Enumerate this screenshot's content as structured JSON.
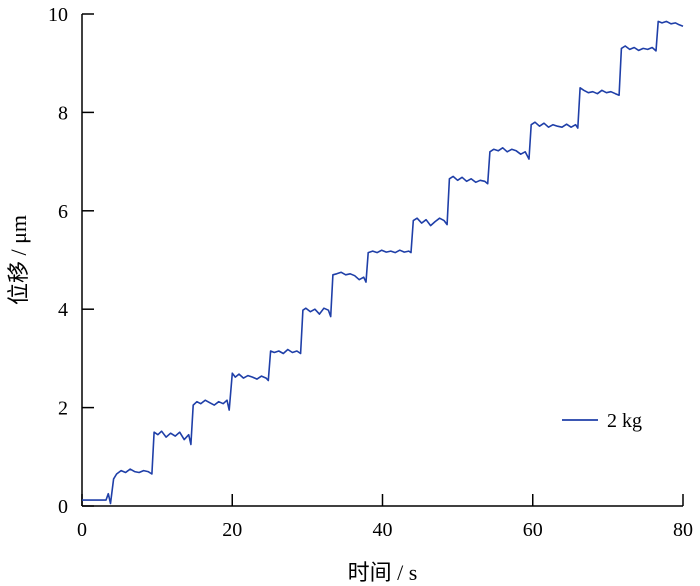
{
  "chart_data": {
    "type": "line",
    "title": "",
    "xlabel": "时间 / s",
    "ylabel": "位移 / μm",
    "xlim": [
      0,
      80
    ],
    "ylim": [
      0,
      10
    ],
    "xticks": [
      "0",
      "20",
      "40",
      "60",
      "80"
    ],
    "yticks": [
      "0",
      "2",
      "4",
      "6",
      "8",
      "10"
    ],
    "grid": false,
    "legend_position": "bottom-right",
    "series": [
      {
        "name": "2 kg",
        "color": "#1f3fa8",
        "x": [
          0,
          3.2,
          3.5,
          3.8,
          4.2,
          4.6,
          5.2,
          5.8,
          6.4,
          7.0,
          7.6,
          8.2,
          8.8,
          9.3,
          9.6,
          10.1,
          10.6,
          11.2,
          11.8,
          12.4,
          13.0,
          13.6,
          14.2,
          14.5,
          14.8,
          15.3,
          15.8,
          16.4,
          17.0,
          17.6,
          18.2,
          18.8,
          19.3,
          19.6,
          20.0,
          20.4,
          20.9,
          21.5,
          22.1,
          22.7,
          23.3,
          23.9,
          24.5,
          24.8,
          25.1,
          25.6,
          26.2,
          26.8,
          27.4,
          28.0,
          28.6,
          29.1,
          29.4,
          29.8,
          30.4,
          31.0,
          31.6,
          32.2,
          32.8,
          33.1,
          33.4,
          33.9,
          34.5,
          35.1,
          35.7,
          36.3,
          36.9,
          37.5,
          37.8,
          38.1,
          38.7,
          39.3,
          39.9,
          40.5,
          41.1,
          41.7,
          42.3,
          42.9,
          43.5,
          43.8,
          44.1,
          44.6,
          45.2,
          45.8,
          46.4,
          47.0,
          47.6,
          48.2,
          48.6,
          48.9,
          49.4,
          50.0,
          50.6,
          51.2,
          51.8,
          52.4,
          53.0,
          53.6,
          54.0,
          54.3,
          54.8,
          55.4,
          56.0,
          56.6,
          57.2,
          57.8,
          58.4,
          59.0,
          59.5,
          59.8,
          60.3,
          60.9,
          61.5,
          62.1,
          62.7,
          63.3,
          63.9,
          64.5,
          65.1,
          65.7,
          66.0,
          66.3,
          66.8,
          67.4,
          68.0,
          68.6,
          69.2,
          69.8,
          70.4,
          71.0,
          71.5,
          71.8,
          72.3,
          72.9,
          73.5,
          74.1,
          74.7,
          75.3,
          75.9,
          76.4,
          76.7,
          77.2,
          77.8,
          78.4,
          79.0,
          79.5,
          80.0
        ],
        "y": [
          0.12,
          0.12,
          0.25,
          0.05,
          0.55,
          0.65,
          0.72,
          0.68,
          0.75,
          0.7,
          0.68,
          0.72,
          0.7,
          0.65,
          1.5,
          1.45,
          1.52,
          1.4,
          1.48,
          1.42,
          1.5,
          1.35,
          1.45,
          1.25,
          2.05,
          2.12,
          2.08,
          2.15,
          2.1,
          2.05,
          2.12,
          2.08,
          2.15,
          1.95,
          2.7,
          2.62,
          2.68,
          2.6,
          2.65,
          2.62,
          2.58,
          2.64,
          2.6,
          2.55,
          3.15,
          3.12,
          3.15,
          3.1,
          3.18,
          3.12,
          3.15,
          3.1,
          3.98,
          4.02,
          3.95,
          4.0,
          3.9,
          4.02,
          3.98,
          3.85,
          4.7,
          4.72,
          4.75,
          4.7,
          4.72,
          4.68,
          4.6,
          4.65,
          4.55,
          5.15,
          5.18,
          5.15,
          5.2,
          5.16,
          5.18,
          5.15,
          5.2,
          5.16,
          5.18,
          5.15,
          5.8,
          5.85,
          5.75,
          5.82,
          5.7,
          5.78,
          5.85,
          5.8,
          5.72,
          6.65,
          6.7,
          6.62,
          6.68,
          6.6,
          6.65,
          6.58,
          6.62,
          6.6,
          6.55,
          7.2,
          7.25,
          7.22,
          7.28,
          7.2,
          7.25,
          7.22,
          7.15,
          7.2,
          7.05,
          7.75,
          7.8,
          7.72,
          7.78,
          7.7,
          7.75,
          7.72,
          7.7,
          7.76,
          7.7,
          7.75,
          7.68,
          8.5,
          8.45,
          8.4,
          8.42,
          8.38,
          8.45,
          8.4,
          8.42,
          8.38,
          8.35,
          9.3,
          9.35,
          9.28,
          9.32,
          9.26,
          9.3,
          9.28,
          9.32,
          9.25,
          9.85,
          9.82,
          9.85,
          9.8,
          9.82,
          9.78,
          9.75
        ]
      }
    ]
  }
}
